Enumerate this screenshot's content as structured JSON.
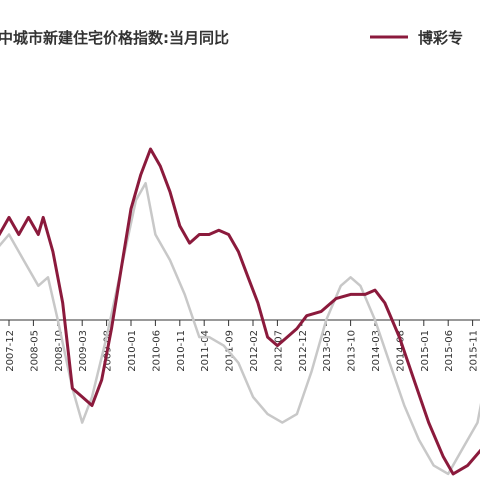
{
  "legend": {
    "left_label": "中城市新建住宅价格指数:当月同比",
    "right_label": "博彩专"
  },
  "colors": {
    "series_primary": "#8B1A3C",
    "series_secondary": "#C8C8C8",
    "axis": "#333333"
  },
  "chart_data": {
    "type": "line",
    "title": "",
    "xlabel": "",
    "ylabel": "",
    "x_ticks": [
      "2007-12",
      "2008-05",
      "2008-10",
      "2009-03",
      "2009-08",
      "2010-01",
      "2010-06",
      "2010-11",
      "2011-04",
      "2011-09",
      "2012-02",
      "2012-07",
      "2012-12",
      "2013-05",
      "2013-10",
      "2014-03",
      "2014-08",
      "2015-01",
      "2015-06",
      "2015-11"
    ],
    "series": [
      {
        "name": "博彩专",
        "color": "#8B1A3C",
        "points": [
          [
            "2007-09",
            9
          ],
          [
            "2007-12",
            12
          ],
          [
            "2008-02",
            10
          ],
          [
            "2008-04",
            12
          ],
          [
            "2008-06",
            10
          ],
          [
            "2008-07",
            12
          ],
          [
            "2008-09",
            8
          ],
          [
            "2008-11",
            2
          ],
          [
            "2009-01",
            -8
          ],
          [
            "2009-03",
            -9
          ],
          [
            "2009-05",
            -10
          ],
          [
            "2009-07",
            -7
          ],
          [
            "2009-09",
            -1
          ],
          [
            "2009-11",
            6
          ],
          [
            "2010-01",
            13
          ],
          [
            "2010-03",
            17
          ],
          [
            "2010-05",
            20
          ],
          [
            "2010-07",
            18
          ],
          [
            "2010-09",
            15
          ],
          [
            "2010-11",
            11
          ],
          [
            "2011-01",
            9
          ],
          [
            "2011-03",
            10
          ],
          [
            "2011-05",
            10
          ],
          [
            "2011-07",
            10.5
          ],
          [
            "2011-09",
            10
          ],
          [
            "2011-11",
            8
          ],
          [
            "2012-01",
            5
          ],
          [
            "2012-03",
            2
          ],
          [
            "2012-05",
            -2
          ],
          [
            "2012-07",
            -3
          ],
          [
            "2012-09",
            -2
          ],
          [
            "2012-11",
            -1
          ],
          [
            "2013-01",
            0.5
          ],
          [
            "2013-04",
            1
          ],
          [
            "2013-07",
            2.5
          ],
          [
            "2013-10",
            3
          ],
          [
            "2014-01",
            3
          ],
          [
            "2014-03",
            3.5
          ],
          [
            "2014-05",
            2
          ],
          [
            "2014-08",
            -2
          ],
          [
            "2014-11",
            -7
          ],
          [
            "2015-02",
            -12
          ],
          [
            "2015-05",
            -16
          ],
          [
            "2015-07",
            -18
          ],
          [
            "2015-10",
            -17
          ],
          [
            "2016-01",
            -15
          ]
        ]
      },
      {
        "name": "",
        "color": "#C8C8C8",
        "points": [
          [
            "2007-09",
            8
          ],
          [
            "2007-12",
            10
          ],
          [
            "2008-03",
            7
          ],
          [
            "2008-06",
            4
          ],
          [
            "2008-08",
            5
          ],
          [
            "2008-10",
            0
          ],
          [
            "2009-01",
            -8
          ],
          [
            "2009-03",
            -12
          ],
          [
            "2009-05",
            -9
          ],
          [
            "2009-08",
            -2
          ],
          [
            "2009-11",
            6
          ],
          [
            "2010-02",
            14
          ],
          [
            "2010-04",
            16
          ],
          [
            "2010-06",
            10
          ],
          [
            "2010-09",
            7
          ],
          [
            "2010-12",
            3
          ],
          [
            "2011-03",
            -2
          ],
          [
            "2011-05",
            -2
          ],
          [
            "2011-08",
            -3
          ],
          [
            "2011-11",
            -5
          ],
          [
            "2012-02",
            -9
          ],
          [
            "2012-05",
            -11
          ],
          [
            "2012-08",
            -12
          ],
          [
            "2012-11",
            -11
          ],
          [
            "2013-02",
            -6
          ],
          [
            "2013-05",
            0
          ],
          [
            "2013-08",
            4
          ],
          [
            "2013-10",
            5
          ],
          [
            "2013-12",
            4
          ],
          [
            "2014-03",
            0
          ],
          [
            "2014-06",
            -5
          ],
          [
            "2014-09",
            -10
          ],
          [
            "2014-12",
            -14
          ],
          [
            "2015-03",
            -17
          ],
          [
            "2015-06",
            -18
          ],
          [
            "2015-09",
            -15
          ],
          [
            "2015-12",
            -12
          ],
          [
            "2016-01",
            -9
          ]
        ]
      }
    ]
  }
}
